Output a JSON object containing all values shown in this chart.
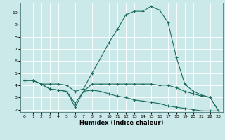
{
  "xlabel": "Humidex (Indice chaleur)",
  "bg_color": "#cce9ea",
  "line_color": "#1a6b5a",
  "grid_color": "#ffffff",
  "xlim": [
    -0.5,
    23.5
  ],
  "ylim": [
    1.8,
    10.8
  ],
  "yticks": [
    2,
    3,
    4,
    5,
    6,
    7,
    8,
    9,
    10
  ],
  "xticks": [
    0,
    1,
    2,
    3,
    4,
    5,
    6,
    7,
    8,
    9,
    10,
    11,
    12,
    13,
    14,
    15,
    16,
    17,
    18,
    19,
    20,
    21,
    22,
    23
  ],
  "line1_x": [
    0,
    1,
    2,
    3,
    4,
    5,
    6,
    7,
    8,
    9,
    10,
    11,
    12,
    13,
    14,
    15,
    16,
    17,
    18,
    19,
    20,
    21,
    22,
    23
  ],
  "line1_y": [
    4.4,
    4.4,
    4.1,
    4.1,
    4.1,
    4.0,
    3.5,
    3.7,
    5.0,
    6.2,
    7.5,
    8.6,
    9.8,
    10.1,
    10.1,
    10.5,
    10.2,
    9.2,
    6.3,
    4.1,
    3.5,
    3.2,
    3.0,
    1.9
  ],
  "line2_x": [
    0,
    1,
    2,
    3,
    4,
    5,
    6,
    7,
    8,
    9,
    10,
    11,
    12,
    13,
    14,
    15,
    16,
    17,
    18,
    19,
    20,
    21,
    22,
    23
  ],
  "line2_y": [
    4.4,
    4.4,
    4.1,
    3.7,
    3.6,
    3.5,
    2.5,
    3.5,
    4.1,
    4.1,
    4.1,
    4.1,
    4.1,
    4.1,
    4.1,
    4.1,
    4.0,
    4.0,
    3.8,
    3.5,
    3.3,
    3.1,
    3.0,
    1.9
  ],
  "line3_x": [
    0,
    1,
    2,
    3,
    4,
    5,
    6,
    7,
    8,
    9,
    10,
    11,
    12,
    13,
    14,
    15,
    16,
    17,
    18,
    19,
    20,
    21,
    22,
    23
  ],
  "line3_y": [
    4.4,
    4.4,
    4.1,
    3.7,
    3.6,
    3.5,
    2.2,
    3.5,
    3.6,
    3.5,
    3.3,
    3.1,
    3.0,
    2.8,
    2.7,
    2.6,
    2.5,
    2.3,
    2.2,
    2.1,
    2.0,
    1.9,
    1.9,
    1.9
  ]
}
